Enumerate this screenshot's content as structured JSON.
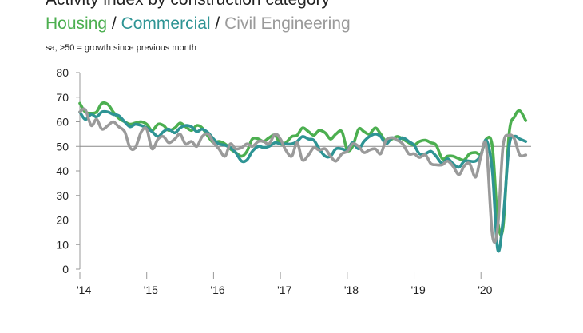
{
  "chart_data": {
    "type": "line",
    "title": "Activity index by construction category",
    "legend": [
      {
        "name": "Housing",
        "color": "#4caf50"
      },
      {
        "name": "Commercial",
        "color": "#2e9494"
      },
      {
        "name": "Civil Engineering",
        "color": "#9a9a9a"
      }
    ],
    "legend_separator": " / ",
    "note": "sa, >50 = growth since previous month",
    "ylim": [
      0,
      80
    ],
    "yticks": [
      0,
      10,
      20,
      30,
      40,
      50,
      60,
      70,
      80
    ],
    "xlim": [
      2014,
      2020.75
    ],
    "xticks": [
      2014,
      2015,
      2016,
      2017,
      2018,
      2019,
      2020
    ],
    "xtick_labels": [
      "'14",
      "'15",
      "'16",
      "'17",
      "'18",
      "'19",
      "'20"
    ],
    "reference_line": 50,
    "series": [
      {
        "name": "Housing",
        "color": "#4caf50",
        "x": [
          2014.0,
          2014.08,
          2014.17,
          2014.25,
          2014.33,
          2014.42,
          2014.5,
          2014.58,
          2014.67,
          2014.75,
          2014.83,
          2014.92,
          2015.0,
          2015.08,
          2015.17,
          2015.25,
          2015.33,
          2015.42,
          2015.5,
          2015.58,
          2015.67,
          2015.75,
          2015.83,
          2015.92,
          2016.0,
          2016.08,
          2016.17,
          2016.25,
          2016.33,
          2016.42,
          2016.5,
          2016.58,
          2016.67,
          2016.75,
          2016.83,
          2016.92,
          2017.0,
          2017.08,
          2017.17,
          2017.25,
          2017.33,
          2017.42,
          2017.5,
          2017.58,
          2017.67,
          2017.75,
          2017.83,
          2017.92,
          2018.0,
          2018.08,
          2018.17,
          2018.25,
          2018.33,
          2018.42,
          2018.5,
          2018.58,
          2018.67,
          2018.75,
          2018.83,
          2018.92,
          2019.0,
          2019.08,
          2019.17,
          2019.25,
          2019.33,
          2019.42,
          2019.5,
          2019.58,
          2019.67,
          2019.75,
          2019.83,
          2019.92,
          2020.0,
          2020.08,
          2020.17,
          2020.25,
          2020.33,
          2020.42,
          2020.5,
          2020.58,
          2020.67
        ],
        "values": [
          67.5,
          64,
          63.5,
          64,
          67.5,
          67,
          64,
          61.5,
          60,
          59,
          59.5,
          60,
          59,
          56.5,
          59,
          58.5,
          56.5,
          57.5,
          59.5,
          58,
          56.5,
          58.5,
          57.5,
          54,
          51.5,
          52,
          51,
          49,
          47.5,
          46,
          48,
          53,
          53,
          52,
          53.5,
          54.5,
          51,
          51.5,
          54,
          54.5,
          57.5,
          56,
          54.5,
          56.5,
          55.5,
          53,
          55,
          56,
          48.5,
          50,
          57,
          56,
          55,
          57.5,
          55,
          52,
          53,
          54,
          53,
          51.5,
          50.5,
          52,
          52.5,
          51.5,
          50.5,
          45,
          46,
          46,
          45,
          44.5,
          47,
          47.5,
          47,
          53,
          50,
          20,
          17,
          55,
          62,
          64.5,
          60.5
        ]
      },
      {
        "name": "Commercial",
        "color": "#2e9494",
        "x": [
          2014.0,
          2014.08,
          2014.17,
          2014.25,
          2014.33,
          2014.42,
          2014.5,
          2014.58,
          2014.67,
          2014.75,
          2014.83,
          2014.92,
          2015.0,
          2015.08,
          2015.17,
          2015.25,
          2015.33,
          2015.42,
          2015.5,
          2015.58,
          2015.67,
          2015.75,
          2015.83,
          2015.92,
          2016.0,
          2016.08,
          2016.17,
          2016.25,
          2016.33,
          2016.42,
          2016.5,
          2016.58,
          2016.67,
          2016.75,
          2016.83,
          2016.92,
          2017.0,
          2017.08,
          2017.17,
          2017.25,
          2017.33,
          2017.42,
          2017.5,
          2017.58,
          2017.67,
          2017.75,
          2017.83,
          2017.92,
          2018.0,
          2018.08,
          2018.17,
          2018.25,
          2018.33,
          2018.42,
          2018.5,
          2018.58,
          2018.67,
          2018.75,
          2018.83,
          2018.92,
          2019.0,
          2019.08,
          2019.17,
          2019.25,
          2019.33,
          2019.42,
          2019.5,
          2019.58,
          2019.67,
          2019.75,
          2019.83,
          2019.92,
          2020.0,
          2020.08,
          2020.17,
          2020.25,
          2020.33,
          2020.42,
          2020.5,
          2020.58,
          2020.67
        ],
        "values": [
          64,
          61,
          63,
          62,
          64,
          64,
          63,
          62.5,
          60,
          58,
          59,
          58.5,
          57.5,
          56,
          54,
          56,
          57,
          55.5,
          57.5,
          58.5,
          58,
          56,
          57,
          55.5,
          53,
          51,
          50.5,
          49.5,
          47.5,
          44,
          44.5,
          48,
          50,
          49.5,
          50,
          51.5,
          51,
          51,
          51,
          52,
          54,
          53,
          52.5,
          49,
          46,
          46,
          49,
          49,
          48.5,
          51.5,
          49,
          52,
          54,
          55,
          54,
          51,
          53.5,
          52.5,
          53.5,
          52,
          50.5,
          47,
          47,
          48,
          46,
          43,
          45,
          43,
          41.5,
          44,
          44,
          44,
          46.5,
          52.5,
          40,
          8,
          20,
          50,
          54,
          53,
          52
        ]
      },
      {
        "name": "Civil Engineering",
        "color": "#9a9a9a",
        "x": [
          2014.0,
          2014.08,
          2014.17,
          2014.25,
          2014.33,
          2014.42,
          2014.5,
          2014.58,
          2014.67,
          2014.75,
          2014.83,
          2014.92,
          2015.0,
          2015.08,
          2015.17,
          2015.25,
          2015.33,
          2015.42,
          2015.5,
          2015.58,
          2015.67,
          2015.75,
          2015.83,
          2015.92,
          2016.0,
          2016.08,
          2016.17,
          2016.25,
          2016.33,
          2016.42,
          2016.5,
          2016.58,
          2016.67,
          2016.75,
          2016.83,
          2016.92,
          2017.0,
          2017.08,
          2017.17,
          2017.25,
          2017.33,
          2017.42,
          2017.5,
          2017.58,
          2017.67,
          2017.75,
          2017.83,
          2017.92,
          2018.0,
          2018.08,
          2018.17,
          2018.25,
          2018.33,
          2018.42,
          2018.5,
          2018.58,
          2018.67,
          2018.75,
          2018.83,
          2018.92,
          2019.0,
          2019.08,
          2019.17,
          2019.25,
          2019.33,
          2019.42,
          2019.5,
          2019.58,
          2019.67,
          2019.75,
          2019.83,
          2019.92,
          2020.0,
          2020.08,
          2020.17,
          2020.25,
          2020.33,
          2020.42,
          2020.5,
          2020.58,
          2020.67
        ],
        "values": [
          64,
          65,
          58.5,
          61,
          57,
          58.5,
          60,
          58,
          56,
          49.5,
          49.5,
          56,
          57,
          49,
          53,
          54,
          51.5,
          53,
          55,
          51,
          52,
          50,
          54,
          55,
          51.5,
          49,
          46,
          51,
          49,
          49.5,
          51,
          50,
          52,
          52,
          51,
          55,
          53,
          48.5,
          46,
          51.5,
          44.5,
          46.5,
          49.5,
          48.5,
          49,
          46,
          44,
          47,
          48,
          51,
          50,
          47.5,
          48.5,
          49,
          47,
          52.5,
          53.5,
          52.5,
          51,
          47,
          47,
          45.5,
          46.5,
          43,
          42.5,
          42.5,
          44,
          42,
          38.5,
          42,
          43,
          37.5,
          46,
          50,
          14,
          17,
          50,
          54.5,
          53,
          46.5,
          46.5
        ]
      }
    ]
  }
}
